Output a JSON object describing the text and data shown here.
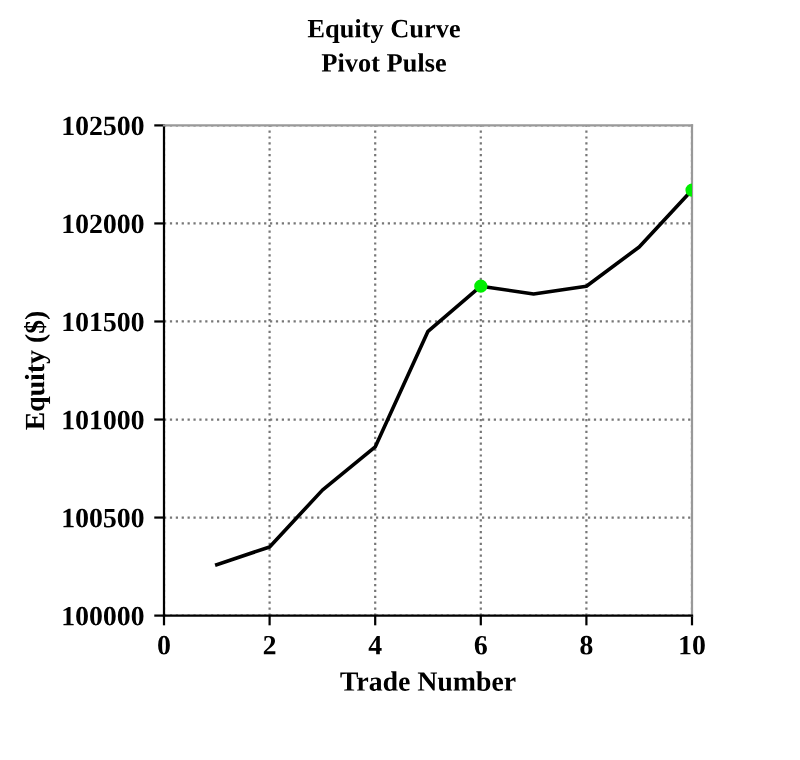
{
  "chart_data": {
    "type": "line",
    "title": "Equity Curve",
    "subtitle": "Pivot Pulse",
    "xlabel": "Trade Number",
    "ylabel": "Equity ($)",
    "x": [
      1,
      2,
      3,
      4,
      5,
      6,
      7,
      8,
      9,
      10
    ],
    "series": [
      {
        "color": "#000000",
        "values": [
          100260,
          100350,
          100640,
          100860,
          101450,
          101680,
          101640,
          101680,
          101880,
          102170
        ]
      },
      {
        "type": "scatter",
        "color": "#00ee00",
        "x": [
          6,
          10
        ],
        "values": [
          101680,
          102170
        ]
      }
    ],
    "xlim": [
      0,
      10
    ],
    "xticks": [
      0,
      2,
      4,
      6,
      8,
      10
    ],
    "ylim": [
      100000,
      102500
    ],
    "yticks": [
      100000,
      100500,
      101000,
      101500,
      102000,
      102500
    ],
    "grid": true,
    "line_style": "solid"
  }
}
